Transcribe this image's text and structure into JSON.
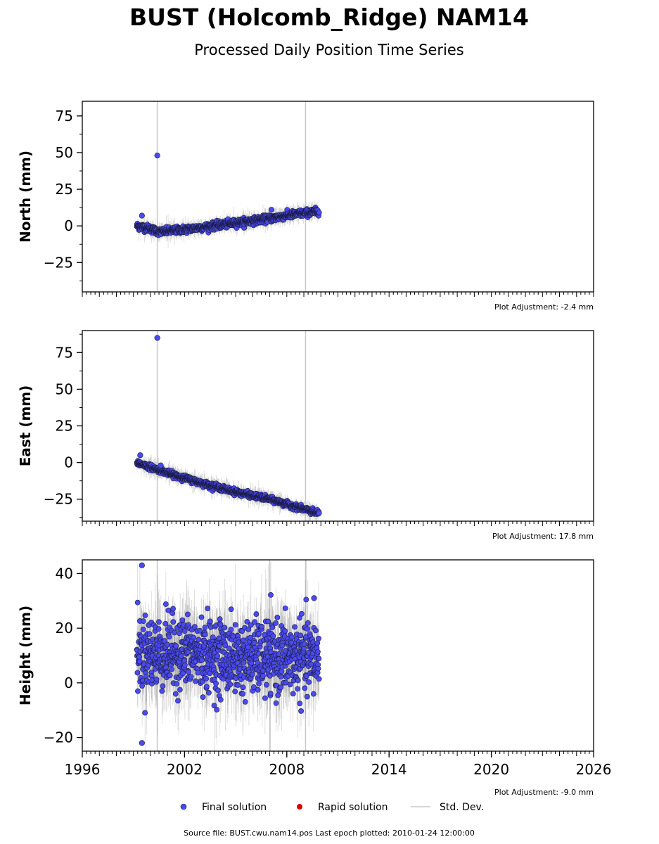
{
  "title": "BUST (Holcomb_Ridge) NAM14",
  "subtitle": "Processed Daily Position Time Series",
  "footer": "Source file: BUST.cwu.nam14.pos  Last epoch plotted: 2010-01-24 12:00:00",
  "colors": {
    "final": "#4a4aee",
    "rapid": "#e00000",
    "stddev": "#c8c8c8",
    "marker_edge": "#1a1a40"
  },
  "legend": [
    {
      "label": "Final solution",
      "marker": "dot",
      "color": "#4a4aee"
    },
    {
      "label": "Rapid solution",
      "marker": "dot",
      "color": "#e00000"
    },
    {
      "label": "Std. Dev.",
      "marker": "line",
      "color": "#c8c8c8"
    }
  ],
  "chart_data": [
    {
      "type": "scatter",
      "ylabel": "North (mm)",
      "xlim": [
        1996,
        2026
      ],
      "ylim": [
        -45,
        85
      ],
      "yticks": [
        -25,
        0,
        25,
        50,
        75
      ],
      "xtick_labels_shown": false,
      "adjustment": "Plot Adjustment: -2.4 mm",
      "trend": [
        [
          1999.2,
          0
        ],
        [
          2000.0,
          -2
        ],
        [
          2000.5,
          -4
        ],
        [
          2001.5,
          -3
        ],
        [
          2003.0,
          -1
        ],
        [
          2005.0,
          2
        ],
        [
          2007.0,
          5
        ],
        [
          2008.5,
          8
        ],
        [
          2009.9,
          10
        ]
      ],
      "scatter_sd": 1.2,
      "errbar_sd": 2.5,
      "outliers": [
        {
          "x": 2000.4,
          "y": 48
        },
        {
          "x": 1999.5,
          "y": 7
        },
        {
          "x": 2007.1,
          "y": 11
        }
      ],
      "full_bars": [
        2000.4,
        2009.1
      ]
    },
    {
      "type": "scatter",
      "ylabel": "East (mm)",
      "xlim": [
        1996,
        2026
      ],
      "ylim": [
        -40,
        90
      ],
      "yticks": [
        -25,
        0,
        25,
        50,
        75
      ],
      "xtick_labels_shown": false,
      "adjustment": "Plot Adjustment: 17.8 mm",
      "trend": [
        [
          1999.2,
          0
        ],
        [
          2001.0,
          -7
        ],
        [
          2003.0,
          -14
        ],
        [
          2005.0,
          -20
        ],
        [
          2007.0,
          -25
        ],
        [
          2009.9,
          -35
        ]
      ],
      "scatter_sd": 0.9,
      "errbar_sd": 2.5,
      "outliers": [
        {
          "x": 2000.4,
          "y": 85
        },
        {
          "x": 1999.4,
          "y": 5
        },
        {
          "x": 2000.6,
          "y": -2
        }
      ],
      "full_bars": [
        2000.4,
        2009.1
      ]
    },
    {
      "type": "scatter",
      "ylabel": "Height (mm)",
      "xlim": [
        1996,
        2026
      ],
      "ylim": [
        -25,
        45
      ],
      "yticks": [
        -20,
        0,
        20,
        40
      ],
      "xticks": [
        1996,
        2002,
        2008,
        2014,
        2020,
        2026
      ],
      "xtick_labels_shown": true,
      "adjustment": "Plot Adjustment: -9.0 mm",
      "trend": [
        [
          1999.2,
          11
        ],
        [
          2002.0,
          11
        ],
        [
          2005.0,
          9
        ],
        [
          2008.0,
          9
        ],
        [
          2009.9,
          9
        ]
      ],
      "scatter_sd": 6.5,
      "errbar_sd": 7,
      "outliers": [
        {
          "x": 1999.5,
          "y": 43
        },
        {
          "x": 1999.5,
          "y": -22
        },
        {
          "x": 2009.6,
          "y": 31
        }
      ],
      "full_bars": [
        2000.4,
        2007.0,
        2009.1
      ]
    }
  ]
}
